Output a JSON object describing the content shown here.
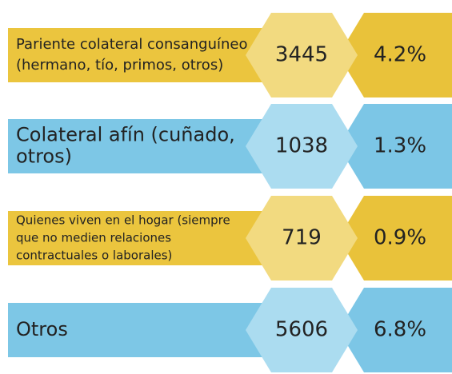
{
  "rows": [
    {
      "label_lines": [
        "Pariente colateral consanguíneo",
        "(hermano, tío, primos, otros)"
      ],
      "count": 3445,
      "percent": "4.2%"
    },
    {
      "label_lines": [
        "Colateral afín (cuñado,",
        "otros)"
      ],
      "count": 1038,
      "percent": "1.3%"
    },
    {
      "label_lines": [
        "Quienes viven en el hogar (siempre",
        "que no medien relaciones",
        "contractuales o laborales)"
      ],
      "count": 719,
      "percent": "0.9%"
    },
    {
      "label_lines": [
        "Otros"
      ],
      "count": 5606,
      "percent": "6.8%"
    }
  ]
}
